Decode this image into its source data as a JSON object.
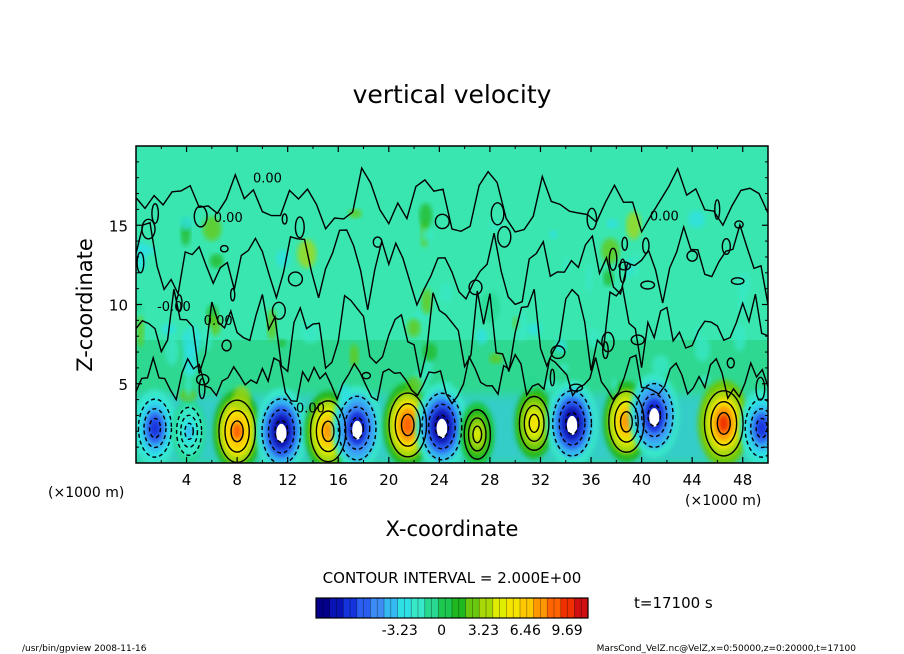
{
  "chart_data": {
    "type": "heatmap",
    "title": "vertical velocity",
    "xlabel": "X-coordinate",
    "ylabel": "Z-coordinate",
    "x_unit_left": "(×1000 m)",
    "x_unit_right": "(×1000 m)",
    "xlim": [
      0,
      50
    ],
    "ylim": [
      0,
      20
    ],
    "x_ticks": [
      4,
      8,
      12,
      16,
      20,
      24,
      28,
      32,
      36,
      40,
      44,
      48
    ],
    "y_ticks": [
      5,
      10,
      15
    ],
    "contour_interval_text": "CONTOUR INTERVAL = 2.000E+00",
    "contour_labels": [
      {
        "text": "0.00",
        "x": 10.4,
        "y": 17.7
      },
      {
        "text": "0.00",
        "x": 7.3,
        "y": 15.2
      },
      {
        "text": "0.00",
        "x": 6.5,
        "y": 8.7
      },
      {
        "text": "-0.00",
        "x": 3.0,
        "y": 9.6
      },
      {
        "text": "0.00",
        "x": 41.8,
        "y": 15.3
      },
      {
        "text": "0.00",
        "x": 13.8,
        "y": 3.2
      }
    ],
    "cells": [
      {
        "x": 1.5,
        "z": 2.2,
        "w": -7.0
      },
      {
        "x": 4.2,
        "z": 2.0,
        "w": -3.5
      },
      {
        "x": 8.0,
        "z": 2.0,
        "w": 8.5
      },
      {
        "x": 11.5,
        "z": 2.0,
        "w": -9.5
      },
      {
        "x": 15.2,
        "z": 2.0,
        "w": 8.0
      },
      {
        "x": 17.5,
        "z": 2.2,
        "w": -9.0
      },
      {
        "x": 21.5,
        "z": 2.4,
        "w": 9.0
      },
      {
        "x": 24.2,
        "z": 2.3,
        "w": -10.0
      },
      {
        "x": 27.0,
        "z": 1.8,
        "w": 4.0
      },
      {
        "x": 31.5,
        "z": 2.5,
        "w": 5.5
      },
      {
        "x": 34.5,
        "z": 2.5,
        "w": -9.5
      },
      {
        "x": 38.8,
        "z": 2.6,
        "w": 8.0
      },
      {
        "x": 41.0,
        "z": 3.0,
        "w": -9.0
      },
      {
        "x": 46.5,
        "z": 2.5,
        "w": 9.5
      },
      {
        "x": 49.5,
        "z": 2.2,
        "w": -7.0
      }
    ],
    "colorbar": {
      "tick_labels": [
        "-3.23",
        "0",
        "3.23",
        "6.46",
        "9.69"
      ],
      "tick_values": [
        -3.23,
        0,
        3.23,
        6.46,
        9.69
      ],
      "min": -9.69,
      "max": 11.3,
      "colors": [
        "#05008a",
        "#0a14b4",
        "#1533dc",
        "#2a5ef0",
        "#3d8cf5",
        "#36b8f0",
        "#2ee0e6",
        "#39e8c8",
        "#28d890",
        "#1dc850",
        "#20b820",
        "#68c810",
        "#a8d808",
        "#e0ec00",
        "#f4e400",
        "#ffc800",
        "#ff9800",
        "#ff6400",
        "#f03000",
        "#d01010"
      ]
    },
    "time_label": "t=17100 s",
    "footer_left": "/usr/bin/gpview   2008-11-16",
    "footer_right": "MarsCond_VelZ.nc@VelZ,x=0:50000,z=0:20000,t=17100"
  }
}
